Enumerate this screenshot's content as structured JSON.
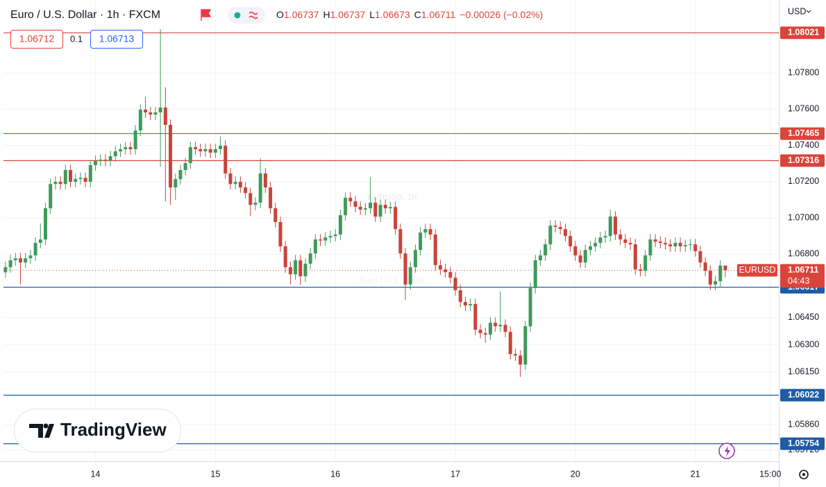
{
  "chart_data": {
    "type": "candlestick",
    "title": "Euro / U.S. Dollar · 1h · FXCM",
    "ohlc_legend": {
      "labels": [
        "O",
        "H",
        "L",
        "C"
      ],
      "values": [
        1.06737,
        1.06737,
        1.06673,
        1.06711
      ],
      "change": "−0.00026 (−0.02%)"
    },
    "bid": 1.06712,
    "spread": 0.1,
    "ask": 1.06713,
    "currency": "USD",
    "watermark": {
      "symbol": "EURUSD, 1h",
      "description": "Euro / U.S. Dollar"
    },
    "brand": "TradingView",
    "up_color": "#3f9a5b",
    "down_color": "#c8443a",
    "x": [
      0,
      1,
      2,
      3,
      4,
      5,
      6,
      7,
      8,
      9,
      10,
      11,
      12,
      13,
      14,
      15,
      16,
      17,
      18,
      19,
      20,
      21,
      22,
      23,
      24,
      25,
      26,
      27,
      28,
      29,
      30,
      31,
      32,
      33,
      34,
      35,
      36,
      37,
      38,
      39,
      40,
      41,
      42,
      43,
      44,
      45,
      46,
      47,
      48,
      49,
      50,
      51,
      52,
      53,
      54,
      55,
      56,
      57,
      58,
      59,
      60,
      61,
      62,
      63,
      64,
      65,
      66,
      67,
      68,
      69,
      70,
      71,
      72,
      73,
      74,
      75,
      76,
      77,
      78,
      79,
      80,
      81,
      82,
      83,
      84,
      85,
      86,
      87,
      88,
      89,
      90,
      91,
      92,
      93,
      94,
      95,
      96,
      97,
      98,
      99,
      100,
      101,
      102,
      103,
      104,
      105,
      106,
      107,
      108,
      109,
      110,
      111,
      112,
      113,
      114,
      115,
      116,
      117,
      118,
      119,
      120,
      121,
      122,
      123,
      124,
      125,
      126,
      127,
      128,
      129,
      130,
      131,
      132,
      133,
      134,
      135,
      136,
      137,
      138,
      139,
      140,
      141,
      142,
      143,
      144
    ],
    "open": [
      1.067,
      1.06728,
      1.06766,
      1.06777,
      1.06754,
      1.06777,
      1.06793,
      1.06862,
      1.06881,
      1.07053,
      1.07187,
      1.07199,
      1.07187,
      1.07264,
      1.07199,
      1.07214,
      1.07221,
      1.07199,
      1.07291,
      1.07314,
      1.07321,
      1.07314,
      1.0734,
      1.07367,
      1.07379,
      1.0739,
      1.07379,
      1.07482,
      1.07597,
      1.07582,
      1.0757,
      1.07582,
      1.07609,
      1.07513,
      1.07168,
      1.07214,
      1.07264,
      1.07302,
      1.0739,
      1.07379,
      1.07367,
      1.07379,
      1.0736,
      1.07379,
      1.07398,
      1.07245,
      1.07187,
      1.07199,
      1.07168,
      1.07137,
      1.07072,
      1.07084,
      1.07245,
      1.07168,
      1.07053,
      1.06977,
      1.06843,
      1.06728,
      1.06689,
      1.06766,
      1.06678,
      1.06747,
      1.06804,
      1.06881,
      1.06875,
      1.06892,
      1.069,
      1.06908,
      1.07015,
      1.07111,
      1.07091,
      1.07061,
      1.07046,
      1.07053,
      1.07084,
      1.07007,
      1.07072,
      1.07053,
      1.0706,
      1.06938,
      1.06804,
      1.06632,
      1.06728,
      1.06823,
      1.06919,
      1.06938,
      1.06908,
      1.06739,
      1.06716,
      1.06701,
      1.0667,
      1.06601,
      1.06536,
      1.06517,
      1.06525,
      1.06383,
      1.06364,
      1.06356,
      1.06421,
      1.06402,
      1.0641,
      1.06371,
      1.06249,
      1.06241,
      1.06191,
      1.06402,
      1.06613,
      1.06766,
      1.06793,
      1.06854,
      1.06957,
      1.0695,
      1.06938,
      1.069,
      1.06843,
      1.06793,
      1.06754,
      1.06823,
      1.06843,
      1.06862,
      1.06892,
      1.069,
      1.07007,
      1.06908,
      1.06881,
      1.06862,
      1.06854,
      1.06716,
      1.06708,
      1.06793,
      1.06881,
      1.06869,
      1.06862,
      1.06854,
      1.06843,
      1.06862,
      1.06843,
      1.0685,
      1.06854,
      1.06816,
      1.06754,
      1.06708,
      1.06632,
      1.06651,
      1.06737
    ],
    "high": [
      1.06758,
      1.06796,
      1.06807,
      1.06807,
      1.06807,
      1.06823,
      1.06892,
      1.06969,
      1.07083,
      1.07217,
      1.07229,
      1.07229,
      1.07294,
      1.07294,
      1.07244,
      1.07251,
      1.07251,
      1.07321,
      1.07344,
      1.07351,
      1.07351,
      1.0737,
      1.07397,
      1.07409,
      1.0742,
      1.0742,
      1.07512,
      1.07627,
      1.07667,
      1.07612,
      1.07612,
      1.08041,
      1.0772,
      1.07543,
      1.07244,
      1.07294,
      1.07332,
      1.0742,
      1.0742,
      1.07409,
      1.07409,
      1.07409,
      1.07409,
      1.0745,
      1.07428,
      1.07275,
      1.07229,
      1.07229,
      1.07198,
      1.07167,
      1.07114,
      1.0733,
      1.07275,
      1.07198,
      1.07083,
      1.07007,
      1.06873,
      1.06758,
      1.06796,
      1.06796,
      1.06777,
      1.06834,
      1.06911,
      1.06911,
      1.06922,
      1.0693,
      1.06938,
      1.07045,
      1.07141,
      1.07141,
      1.07121,
      1.07091,
      1.07083,
      1.07226,
      1.07114,
      1.07102,
      1.07102,
      1.0709,
      1.0709,
      1.06968,
      1.06834,
      1.06758,
      1.06853,
      1.06949,
      1.06968,
      1.06968,
      1.06938,
      1.06769,
      1.06746,
      1.06731,
      1.067,
      1.06631,
      1.06566,
      1.06555,
      1.06555,
      1.06413,
      1.06394,
      1.06451,
      1.06451,
      1.06594,
      1.0644,
      1.06401,
      1.06279,
      1.06271,
      1.06432,
      1.06643,
      1.06796,
      1.06823,
      1.06884,
      1.06987,
      1.06987,
      1.0698,
      1.06968,
      1.0693,
      1.06873,
      1.06823,
      1.06853,
      1.06873,
      1.06892,
      1.06922,
      1.0693,
      1.07045,
      1.07037,
      1.06938,
      1.06911,
      1.06892,
      1.06884,
      1.06746,
      1.06823,
      1.06911,
      1.06911,
      1.06899,
      1.06892,
      1.06884,
      1.06892,
      1.06892,
      1.0688,
      1.06884,
      1.06884,
      1.06846,
      1.06784,
      1.06738,
      1.06681,
      1.06767,
      1.06737
    ],
    "low": [
      1.0667,
      1.06698,
      1.06736,
      1.06632,
      1.06724,
      1.06747,
      1.06763,
      1.06832,
      1.06851,
      1.07023,
      1.07157,
      1.07157,
      1.07157,
      1.07169,
      1.07169,
      1.07184,
      1.07169,
      1.07169,
      1.07261,
      1.07284,
      1.07284,
      1.07284,
      1.0731,
      1.07337,
      1.07349,
      1.07349,
      1.07349,
      1.07452,
      1.07552,
      1.0754,
      1.0754,
      1.07283,
      1.07091,
      1.07072,
      1.071,
      1.07184,
      1.07234,
      1.07272,
      1.07349,
      1.07337,
      1.07337,
      1.0733,
      1.0733,
      1.07349,
      1.07215,
      1.07157,
      1.07157,
      1.07138,
      1.07107,
      1.0701,
      1.07042,
      1.07054,
      1.07138,
      1.07023,
      1.06947,
      1.06813,
      1.06698,
      1.06632,
      1.06659,
      1.0663,
      1.06648,
      1.06717,
      1.06774,
      1.06845,
      1.06845,
      1.06862,
      1.0687,
      1.06878,
      1.06985,
      1.07061,
      1.07031,
      1.07016,
      1.07016,
      1.07023,
      1.06977,
      1.06977,
      1.07023,
      1.07023,
      1.06908,
      1.06774,
      1.06548,
      1.06602,
      1.06698,
      1.06793,
      1.06889,
      1.06878,
      1.06709,
      1.06686,
      1.06671,
      1.0664,
      1.06571,
      1.06506,
      1.06487,
      1.06487,
      1.06353,
      1.06334,
      1.0631,
      1.06326,
      1.06372,
      1.06372,
      1.06341,
      1.06219,
      1.06211,
      1.06122,
      1.06161,
      1.06372,
      1.06583,
      1.06736,
      1.06763,
      1.06824,
      1.0692,
      1.06908,
      1.0687,
      1.06813,
      1.06763,
      1.06724,
      1.06724,
      1.06793,
      1.06813,
      1.06832,
      1.06862,
      1.0687,
      1.06878,
      1.06851,
      1.06832,
      1.06824,
      1.06686,
      1.06678,
      1.06678,
      1.06763,
      1.06839,
      1.06832,
      1.06824,
      1.06813,
      1.06813,
      1.06813,
      1.06813,
      1.0682,
      1.06786,
      1.06724,
      1.06678,
      1.06602,
      1.06602,
      1.06621,
      1.06673
    ],
    "close": [
      1.06728,
      1.06766,
      1.06777,
      1.06754,
      1.06777,
      1.06793,
      1.06862,
      1.06881,
      1.07053,
      1.07187,
      1.07199,
      1.07187,
      1.07264,
      1.07199,
      1.07214,
      1.07221,
      1.07199,
      1.07291,
      1.07314,
      1.07321,
      1.07314,
      1.0734,
      1.07367,
      1.07379,
      1.0739,
      1.07379,
      1.07482,
      1.07597,
      1.07582,
      1.0757,
      1.07582,
      1.07609,
      1.07513,
      1.07168,
      1.07214,
      1.07264,
      1.07302,
      1.0739,
      1.07379,
      1.07367,
      1.07379,
      1.0736,
      1.07379,
      1.07398,
      1.07245,
      1.07187,
      1.07199,
      1.07168,
      1.07137,
      1.07072,
      1.07084,
      1.07245,
      1.07168,
      1.07053,
      1.06977,
      1.06843,
      1.06728,
      1.06689,
      1.06766,
      1.06678,
      1.06747,
      1.06804,
      1.06881,
      1.06875,
      1.06892,
      1.069,
      1.06908,
      1.07015,
      1.07111,
      1.07091,
      1.07061,
      1.07046,
      1.07053,
      1.07084,
      1.07007,
      1.07072,
      1.07053,
      1.0706,
      1.06938,
      1.06804,
      1.06632,
      1.06728,
      1.06823,
      1.06919,
      1.06938,
      1.06908,
      1.06739,
      1.06716,
      1.06701,
      1.0667,
      1.06601,
      1.06536,
      1.06517,
      1.06525,
      1.06383,
      1.06364,
      1.06356,
      1.06421,
      1.06402,
      1.0641,
      1.06371,
      1.06249,
      1.06241,
      1.06191,
      1.06402,
      1.06613,
      1.06766,
      1.06793,
      1.06854,
      1.06957,
      1.0695,
      1.06938,
      1.069,
      1.06843,
      1.06793,
      1.06754,
      1.06823,
      1.06843,
      1.06862,
      1.06892,
      1.069,
      1.07007,
      1.06908,
      1.06881,
      1.06862,
      1.06854,
      1.06716,
      1.06708,
      1.06793,
      1.06881,
      1.06869,
      1.06862,
      1.06854,
      1.06843,
      1.06862,
      1.06843,
      1.0685,
      1.06854,
      1.06816,
      1.06754,
      1.06708,
      1.06632,
      1.06651,
      1.06737,
      1.06711
    ],
    "xlim": [
      -0.4,
      154.7
    ],
    "xticks": [
      {
        "value": 18,
        "label": "14"
      },
      {
        "value": 42,
        "label": "15"
      },
      {
        "value": 66,
        "label": "16"
      },
      {
        "value": 90,
        "label": "17"
      },
      {
        "value": 114,
        "label": "20"
      },
      {
        "value": 138,
        "label": "21"
      },
      {
        "value": 153,
        "label": "15:00"
      }
    ],
    "ylim": [
      1.05657,
      1.08202
    ],
    "yticks": [
      {
        "value": 1.078,
        "label": "1.07800"
      },
      {
        "value": 1.076,
        "label": "1.07600"
      },
      {
        "value": 1.074,
        "label": "1.07400"
      },
      {
        "value": 1.072,
        "label": "1.07200"
      },
      {
        "value": 1.07,
        "label": "1.07000"
      },
      {
        "value": 1.068,
        "label": "1.06800"
      },
      {
        "value": 1.0645,
        "label": "1.06450"
      },
      {
        "value": 1.063,
        "label": "1.06300"
      },
      {
        "value": 1.0615,
        "label": "1.06150"
      },
      {
        "value": 1.0586,
        "label": "1.05860"
      },
      {
        "value": 1.0572,
        "label": "1.05720"
      }
    ],
    "grid": true,
    "horizontal_lines": [
      {
        "value": 1.08021,
        "color": "#d9453b"
      },
      {
        "value": 1.07465,
        "color": "#d9453b"
      },
      {
        "value": 1.07316,
        "color": "#d9453b"
      },
      {
        "value": 1.06617,
        "color": "#1f5ba6"
      },
      {
        "value": 1.06022,
        "color": "#1f5ba6"
      },
      {
        "value": 1.05754,
        "color": "#1f5ba6"
      }
    ],
    "last_price": {
      "value": 1.06711,
      "symbol": "EURUSD",
      "countdown": "04:43",
      "color": "#d9453b"
    }
  }
}
